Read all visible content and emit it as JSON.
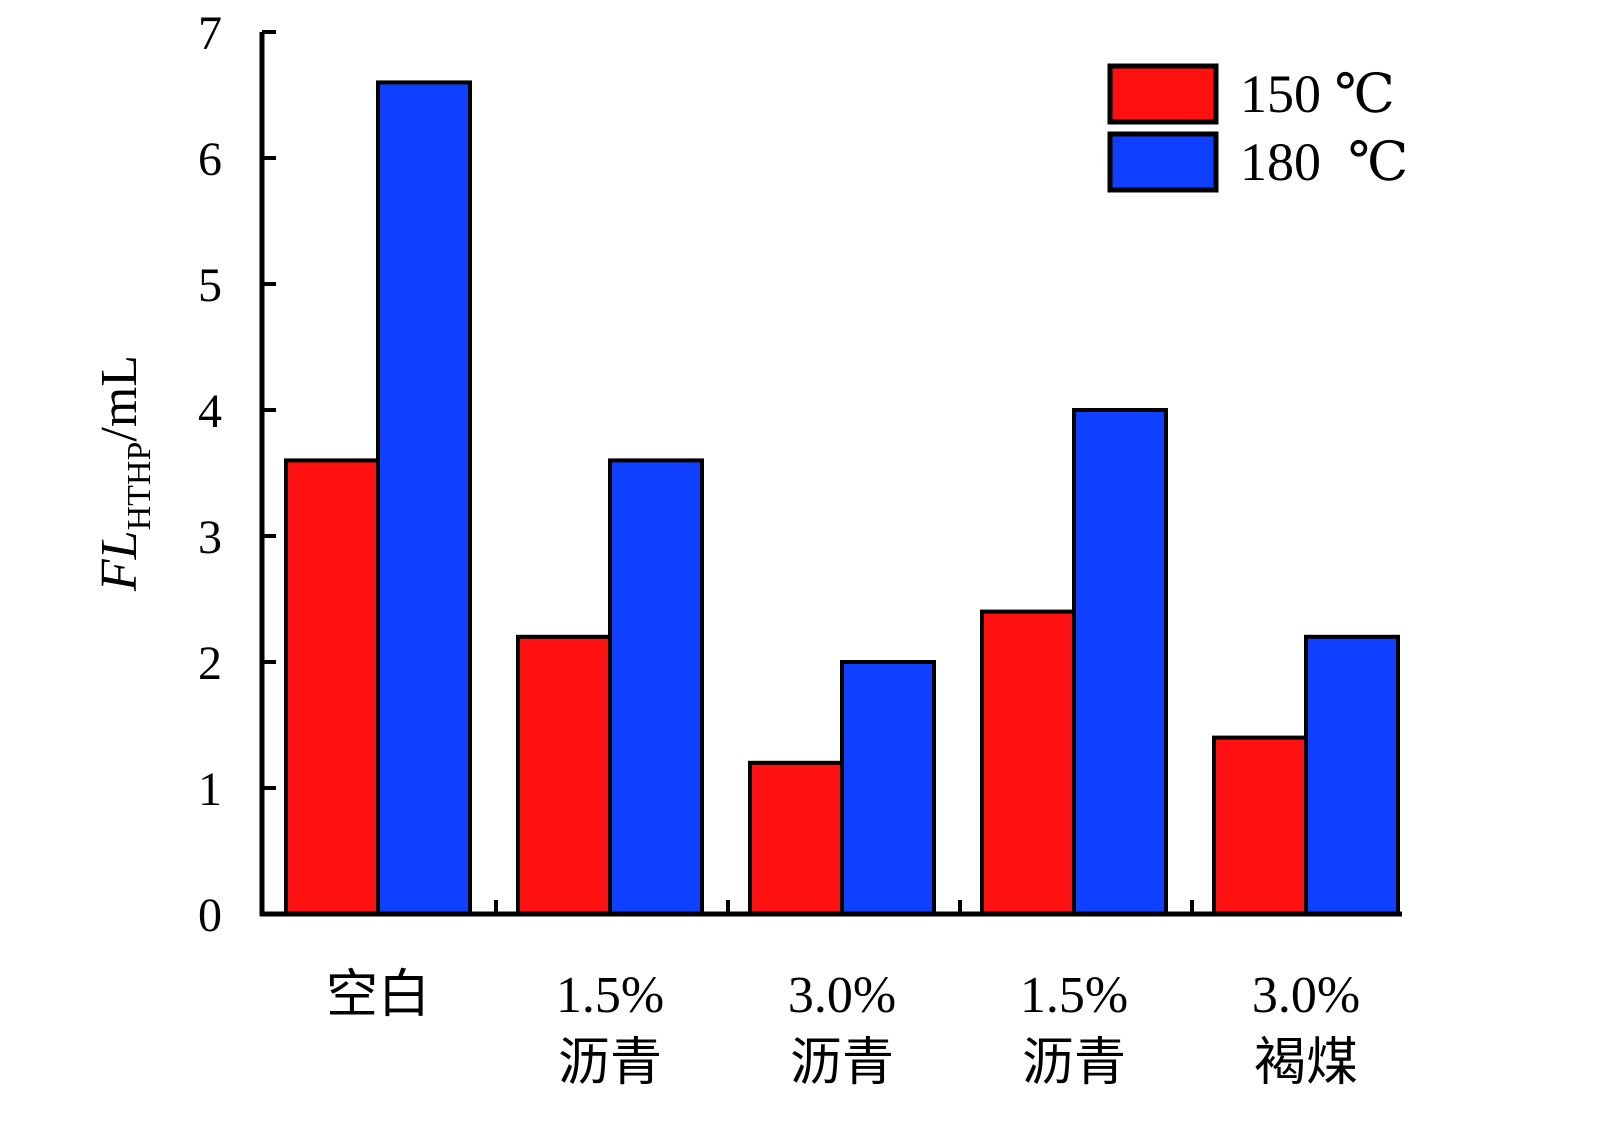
{
  "chart_data": {
    "type": "bar",
    "categories": [
      [
        "空白"
      ],
      [
        "1.5%",
        "沥青"
      ],
      [
        "3.0%",
        "沥青"
      ],
      [
        "1.5%",
        "沥青"
      ],
      [
        "3.0%",
        "褐煤"
      ]
    ],
    "series": [
      {
        "name": "150 ℃",
        "values": [
          3.6,
          2.2,
          1.2,
          2.4,
          1.4
        ],
        "color": "#ff1010"
      },
      {
        "name": "180  ℃",
        "values": [
          6.6,
          3.6,
          2.0,
          4.0,
          2.2
        ],
        "color": "#1040ff"
      }
    ],
    "ylabel": {
      "main": "FL",
      "sub": "HTHP",
      "unit": "/mL"
    },
    "ylim": [
      0,
      7
    ],
    "yticks": [
      0,
      1,
      2,
      3,
      4,
      5,
      6,
      7
    ],
    "grid": false,
    "legend_position": "top-right"
  }
}
